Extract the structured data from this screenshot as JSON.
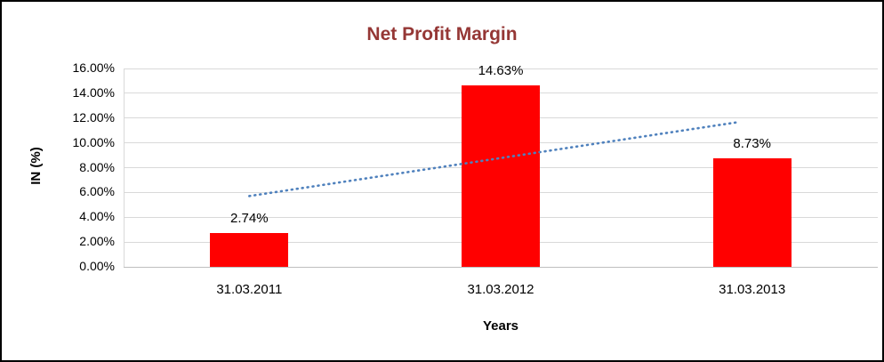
{
  "chart_data": {
    "type": "bar",
    "title": "Net Profit Margin",
    "xlabel": "Years",
    "ylabel": "IN (%)",
    "categories": [
      "31.03.2011",
      "31.03.2012",
      "31.03.2013"
    ],
    "values": [
      2.74,
      14.63,
      8.73
    ],
    "data_labels": [
      "2.74%",
      "14.63%",
      "8.73%"
    ],
    "ylim": [
      0,
      16
    ],
    "ytick_step": 2,
    "y_tick_labels": [
      "0.00%",
      "2.00%",
      "4.00%",
      "6.00%",
      "8.00%",
      "10.00%",
      "12.00%",
      "14.00%",
      "16.00%"
    ],
    "grid": true,
    "legend": "none",
    "bar_color": "#ff0000",
    "title_color": "#953735",
    "gridline_color": "#d9d9d9",
    "axis_color": "#bfbfbf",
    "trendline": {
      "type": "linear",
      "style": "dotted",
      "color": "#4f81bd",
      "start_value": 5.71,
      "end_value": 11.69
    }
  }
}
